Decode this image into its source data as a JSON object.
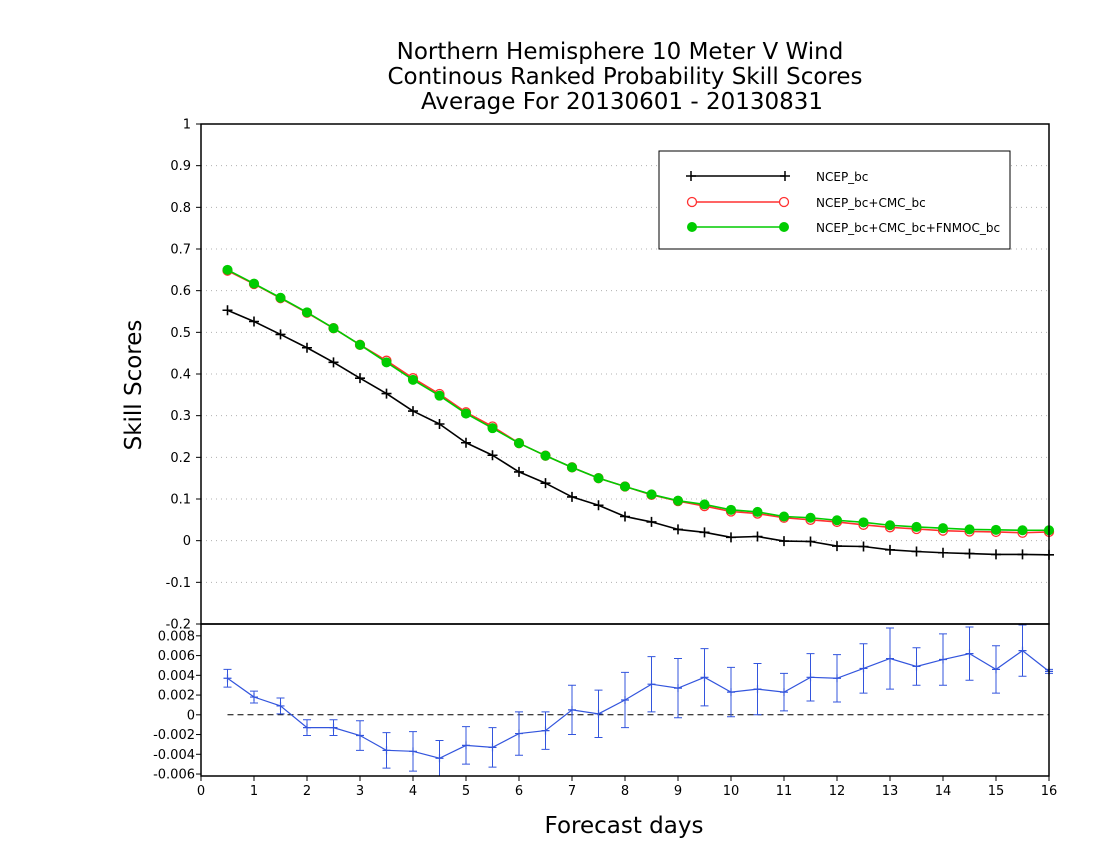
{
  "chart_data": [
    {
      "type": "line",
      "title": [
        "Northern Hemisphere 10 Meter V Wind",
        "Continous Ranked Probability Skill Scores",
        "Average For 20130601 - 20130831"
      ],
      "xlabel": "Forecast days",
      "ylabel": "Skill Scores",
      "xlim": [
        0,
        16
      ],
      "ylim": [
        -0.2,
        1
      ],
      "xticks": [
        "0",
        "1",
        "2",
        "3",
        "4",
        "5",
        "6",
        "7",
        "8",
        "9",
        "10",
        "11",
        "12",
        "13",
        "14",
        "15",
        "16"
      ],
      "yticks": [
        "-0.2",
        "-0.1",
        "0",
        "0.1",
        "0.2",
        "0.3",
        "0.4",
        "0.5",
        "0.6",
        "0.7",
        "0.8",
        "0.9",
        "1"
      ],
      "grid": "horizontal-dotted",
      "legend_position": "top-right",
      "x": [
        0.5,
        1,
        1.5,
        2,
        2.5,
        3,
        3.5,
        4,
        4.5,
        5,
        5.5,
        6,
        6.5,
        7,
        7.5,
        8,
        8.5,
        9,
        9.5,
        10,
        10.5,
        11,
        11.5,
        12,
        12.5,
        13,
        13.5,
        14,
        14.5,
        15,
        15.5,
        16
      ],
      "series": [
        {
          "name": "NCEP_bc",
          "color": "#000000",
          "marker": "plus",
          "values": [
            0.553,
            0.526,
            0.495,
            0.463,
            0.428,
            0.39,
            0.353,
            0.311,
            0.28,
            0.235,
            0.205,
            0.165,
            0.138,
            0.105,
            0.085,
            0.058,
            0.045,
            0.027,
            0.02,
            0.008,
            0.01,
            -0.001,
            -0.002,
            -0.013,
            -0.014,
            -0.022,
            -0.026,
            -0.029,
            -0.031,
            -0.033,
            -0.033,
            -0.034
          ]
        },
        {
          "name": "NCEP_bc+CMC_bc",
          "color": "#ff3030",
          "marker": "open-circle",
          "values": [
            0.648,
            0.616,
            0.582,
            0.547,
            0.51,
            0.47,
            0.432,
            0.39,
            0.352,
            0.308,
            0.274,
            0.234,
            0.204,
            0.176,
            0.15,
            0.13,
            0.11,
            0.095,
            0.083,
            0.07,
            0.065,
            0.055,
            0.05,
            0.045,
            0.038,
            0.032,
            0.028,
            0.024,
            0.022,
            0.021,
            0.019,
            0.021
          ]
        },
        {
          "name": "NCEP_bc+CMC_bc+FNMOC_bc",
          "color": "#00cc00",
          "marker": "filled-circle",
          "values": [
            0.65,
            0.617,
            0.583,
            0.548,
            0.51,
            0.47,
            0.428,
            0.386,
            0.348,
            0.305,
            0.27,
            0.234,
            0.204,
            0.176,
            0.15,
            0.13,
            0.111,
            0.096,
            0.087,
            0.074,
            0.069,
            0.058,
            0.055,
            0.049,
            0.044,
            0.037,
            0.033,
            0.03,
            0.027,
            0.026,
            0.025,
            0.025
          ]
        }
      ]
    },
    {
      "type": "line",
      "xlim": [
        0,
        16
      ],
      "ylim": [
        -0.0062,
        0.0092
      ],
      "yticks": [
        "-0.006",
        "-0.004",
        "-0.002",
        "0",
        "0.002",
        "0.004",
        "0.006",
        "0.008"
      ],
      "reference_line": 0,
      "x": [
        0.5,
        1,
        1.5,
        2,
        2.5,
        3,
        3.5,
        4,
        4.5,
        5,
        5.5,
        6,
        6.5,
        7,
        7.5,
        8,
        8.5,
        9,
        9.5,
        10,
        10.5,
        11,
        11.5,
        12,
        12.5,
        13,
        13.5,
        14,
        14.5,
        15,
        15.5,
        16
      ],
      "series": [
        {
          "color": "#3355dd",
          "marker": "plus",
          "values": [
            0.0037,
            0.0018,
            0.0009,
            -0.0013,
            -0.0013,
            -0.0021,
            -0.0036,
            -0.0037,
            -0.0044,
            -0.0031,
            -0.0033,
            -0.0019,
            -0.0016,
            0.0005,
            0.0001,
            0.0015,
            0.0031,
            0.0027,
            0.0038,
            0.0023,
            0.0026,
            0.0023,
            0.0038,
            0.0037,
            0.0047,
            0.0057,
            0.0049,
            0.0056,
            0.0062,
            0.0046,
            0.0065,
            0.0044
          ],
          "error": [
            0.0009,
            0.0006,
            0.0008,
            0.0008,
            0.0008,
            0.0015,
            0.0018,
            0.002,
            0.0018,
            0.0019,
            0.002,
            0.0022,
            0.0019,
            0.0025,
            0.0024,
            0.0028,
            0.0028,
            0.003,
            0.0029,
            0.0025,
            0.0026,
            0.0019,
            0.0024,
            0.0024,
            0.0025,
            0.0031,
            0.0019,
            0.0026,
            0.0027,
            0.0024,
            0.0026,
            0.0002
          ]
        }
      ]
    }
  ]
}
